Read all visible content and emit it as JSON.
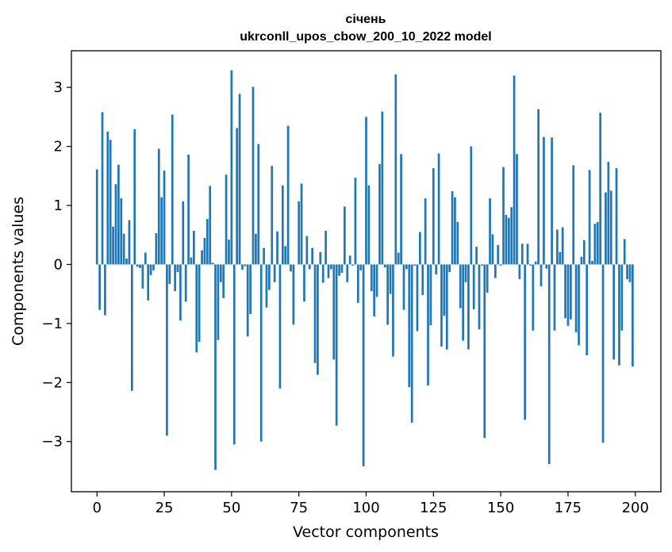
{
  "chart_data": {
    "type": "bar",
    "title_line1": "січень",
    "title_line2": "ukrconll_upos_cbow_200_10_2022 model",
    "xlabel": "Vector components",
    "ylabel": "Components values",
    "xlim": [
      -9.5,
      209.5
    ],
    "ylim": [
      -3.85,
      3.62
    ],
    "xticks": [
      0,
      25,
      50,
      75,
      100,
      125,
      150,
      175,
      200
    ],
    "xtick_labels": [
      "0",
      "25",
      "50",
      "75",
      "100",
      "125",
      "150",
      "175",
      "200"
    ],
    "yticks": [
      -3,
      -2,
      -1,
      0,
      1,
      2,
      3
    ],
    "ytick_labels": [
      "−3",
      "−2",
      "−1",
      "0",
      "1",
      "2",
      "3"
    ],
    "bar_color": "#1f77b4",
    "grid": false,
    "x": [
      0,
      1,
      2,
      3,
      4,
      5,
      6,
      7,
      8,
      9,
      10,
      11,
      12,
      13,
      14,
      15,
      16,
      17,
      18,
      19,
      20,
      21,
      22,
      23,
      24,
      25,
      26,
      27,
      28,
      29,
      30,
      31,
      32,
      33,
      34,
      35,
      36,
      37,
      38,
      39,
      40,
      41,
      42,
      43,
      44,
      45,
      46,
      47,
      48,
      49,
      50,
      51,
      52,
      53,
      54,
      55,
      56,
      57,
      58,
      59,
      60,
      61,
      62,
      63,
      64,
      65,
      66,
      67,
      68,
      69,
      70,
      71,
      72,
      73,
      74,
      75,
      76,
      77,
      78,
      79,
      80,
      81,
      82,
      83,
      84,
      85,
      86,
      87,
      88,
      89,
      90,
      91,
      92,
      93,
      94,
      95,
      96,
      97,
      98,
      99,
      100,
      101,
      102,
      103,
      104,
      105,
      106,
      107,
      108,
      109,
      110,
      111,
      112,
      113,
      114,
      115,
      116,
      117,
      118,
      119,
      120,
      121,
      122,
      123,
      124,
      125,
      126,
      127,
      128,
      129,
      130,
      131,
      132,
      133,
      134,
      135,
      136,
      137,
      138,
      139,
      140,
      141,
      142,
      143,
      144,
      145,
      146,
      147,
      148,
      149,
      150,
      151,
      152,
      153,
      154,
      155,
      156,
      157,
      158,
      159,
      160,
      161,
      162,
      163,
      164,
      165,
      166,
      167,
      168,
      169,
      170,
      171,
      172,
      173,
      174,
      175,
      176,
      177,
      178,
      179,
      180,
      181,
      182,
      183,
      184,
      185,
      186,
      187,
      188,
      189,
      190,
      191,
      192,
      193,
      194,
      195,
      196,
      197,
      198,
      199
    ],
    "values": [
      1.61,
      -0.77,
      2.58,
      -0.86,
      2.25,
      2.11,
      0.64,
      1.36,
      1.69,
      1.12,
      0.52,
      0.1,
      0.75,
      -2.14,
      2.29,
      -0.04,
      -0.06,
      -0.41,
      0.2,
      -0.61,
      -0.18,
      -0.1,
      0.53,
      1.96,
      1.14,
      1.59,
      -2.9,
      -0.33,
      2.54,
      -0.45,
      -0.13,
      -0.95,
      1.07,
      -0.63,
      1.86,
      0.12,
      0.57,
      -1.49,
      -1.31,
      0.24,
      0.45,
      0.77,
      1.33,
      0.03,
      -3.48,
      -1.28,
      -0.3,
      -0.57,
      1.52,
      0.42,
      3.29,
      -3.05,
      2.31,
      2.89,
      -0.09,
      -0.03,
      -1.22,
      -0.84,
      3.01,
      0.52,
      2.04,
      -3.0,
      0.28,
      -0.73,
      -0.43,
      1.67,
      -0.3,
      0.56,
      -2.1,
      1.34,
      0.31,
      2.35,
      -0.12,
      -1.02,
      0.0,
      1.07,
      1.37,
      -0.63,
      0.48,
      -0.08,
      0.28,
      -1.67,
      -1.87,
      0.21,
      -0.31,
      0.57,
      -0.23,
      -0.08,
      -1.61,
      -2.73,
      -0.19,
      -0.14,
      0.98,
      -0.3,
      0.15,
      -0.02,
      1.47,
      -0.65,
      -0.1,
      -3.42,
      2.5,
      1.34,
      -0.45,
      -0.88,
      -0.55,
      1.7,
      2.59,
      -0.05,
      -1.02,
      -0.5,
      -1.56,
      3.22,
      0.2,
      1.87,
      -0.77,
      -0.08,
      -2.08,
      -2.68,
      -0.02,
      -1.13,
      0.55,
      -0.52,
      1.12,
      -2.05,
      -1.03,
      1.63,
      -0.17,
      1.88,
      -1.39,
      -0.87,
      -1.44,
      -0.13,
      1.24,
      1.14,
      0.72,
      -0.74,
      -1.29,
      -0.3,
      -1.44,
      2.0,
      -0.76,
      0.3,
      -1.1,
      -0.02,
      -2.94,
      -0.48,
      1.12,
      0.51,
      -0.23,
      0.33,
      -0.02,
      1.65,
      0.84,
      0.79,
      0.97,
      3.2,
      1.87,
      -0.25,
      0.35,
      -2.63,
      0.35,
      -0.02,
      -1.12,
      0.05,
      2.63,
      -0.37,
      2.16,
      -0.07,
      -3.38,
      2.15,
      -1.12,
      0.59,
      0.21,
      0.63,
      -0.91,
      -1.04,
      -0.93,
      1.68,
      -1.15,
      -1.37,
      0.13,
      0.41,
      -1.54,
      1.6,
      0.06,
      0.69,
      0.72,
      2.57,
      -3.02,
      1.22,
      1.74,
      1.25,
      -1.61,
      1.63,
      -1.71,
      -1.12,
      0.43,
      -0.25,
      -0.3,
      -1.73
    ]
  }
}
